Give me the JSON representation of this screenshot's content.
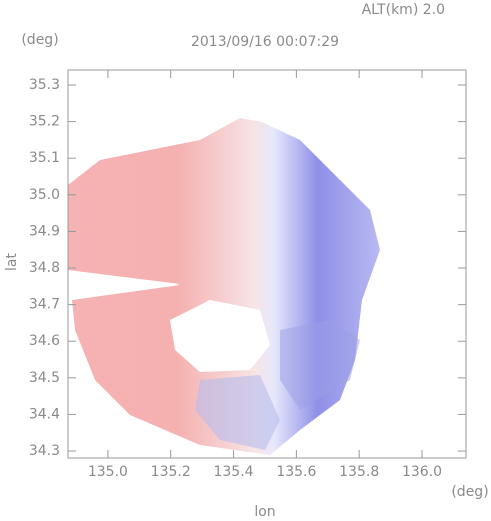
{
  "chart_data": {
    "type": "map",
    "altitude_label": "ALT(km) 2.0",
    "title": "2013/09/16 00:07:29",
    "y_unit": "(deg)",
    "x_unit": "(deg)",
    "y_label": "lat",
    "x_label": "lon",
    "xlim": [
      134.873,
      136.14
    ],
    "ylim": [
      34.281,
      35.341
    ],
    "xticks": [
      {
        "value": 135.0,
        "label": "135.0"
      },
      135.2,
      135.4,
      135.6,
      135.8,
      {
        "value": 136.0,
        "label": "136.0"
      }
    ],
    "yticks": [
      35.3,
      35.2,
      35.1,
      {
        "value": 35.0,
        "label": "35.0"
      },
      34.9,
      34.8,
      34.7,
      34.6,
      34.5,
      34.4,
      34.3
    ]
  }
}
